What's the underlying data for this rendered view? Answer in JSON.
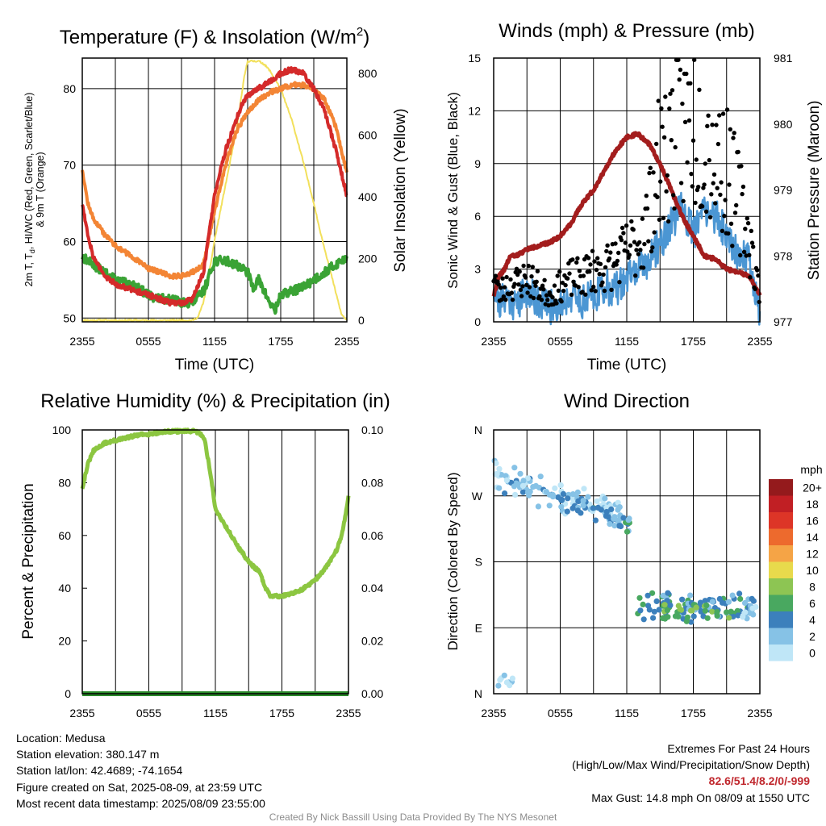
{
  "colors": {
    "temp": "#d42a2a",
    "dewpoint": "#3aa335",
    "temp9m": "#f38535",
    "insolation": "#f2e05c",
    "wind": "#4b96d3",
    "gust": "#000000",
    "pressure": "#a31d1d",
    "rh": "#8cc641",
    "precip": "#2b8a2b",
    "credit": "#8c8c8c",
    "extremes": "#c0272d"
  },
  "time_ticks": [
    "2355",
    "0555",
    "1155",
    "1755",
    "2355"
  ],
  "chart_data": [
    {
      "id": "temp",
      "type": "line",
      "title": "Temperature (F) & Insolation (W/m",
      "title_sup": "2",
      "title_close": ")",
      "xlabel": "Time (UTC)",
      "ylabel_left_lines": [
        "2m T, T",
        "d",
        ", HI/WC (Red, Green, Scarlet/Blue)",
        "& 9m T (Orange)"
      ],
      "ylabel_right": "Solar Insolation (Yellow)",
      "x_range": [
        0,
        24
      ],
      "ylim": [
        49.5,
        84
      ],
      "yticks": [
        50,
        60,
        70,
        80
      ],
      "y2lim": [
        -5,
        850
      ],
      "y2ticks": [
        0,
        200,
        400,
        600,
        800
      ],
      "series": [
        {
          "key": "temp",
          "axis": "left",
          "x": [
            0,
            0.5,
            1,
            2,
            3,
            4,
            5,
            6,
            7,
            8,
            9,
            10,
            11,
            12,
            13,
            14,
            14.5,
            15,
            16,
            17,
            18,
            19,
            20,
            21,
            22,
            23,
            23.5,
            24
          ],
          "values": [
            65,
            61,
            58,
            55.5,
            54.5,
            54,
            53.5,
            53,
            52.5,
            52,
            52,
            52.5,
            56,
            66,
            72,
            76,
            78,
            79,
            80,
            81,
            82,
            82.5,
            82,
            80,
            77,
            72,
            69,
            66
          ]
        },
        {
          "key": "temp9m",
          "axis": "left",
          "x": [
            0,
            0.5,
            1,
            2,
            3,
            4,
            5,
            6,
            7,
            8,
            9,
            10,
            11,
            12,
            13,
            14,
            15,
            16,
            17,
            18,
            19,
            20,
            21,
            22,
            23,
            23.5,
            24
          ],
          "values": [
            69.5,
            65,
            63,
            61,
            59.5,
            58.5,
            57.5,
            56.5,
            56,
            55.5,
            55.5,
            56,
            57,
            64,
            70,
            74.5,
            77,
            78.5,
            79.5,
            80,
            80.5,
            80.5,
            80,
            78.5,
            75,
            72,
            69
          ]
        },
        {
          "key": "dewpoint",
          "axis": "left",
          "x": [
            0,
            1,
            2,
            3,
            4,
            5,
            6,
            7,
            8,
            9,
            10,
            11,
            12,
            13,
            14,
            15,
            15.5,
            16,
            17,
            17.5,
            18,
            19,
            20,
            21,
            22,
            23,
            24
          ],
          "values": [
            58,
            57,
            56,
            55,
            54.5,
            54,
            53,
            52.5,
            52.5,
            52,
            52,
            53.5,
            57.5,
            57.5,
            57,
            56,
            54,
            55,
            52,
            51,
            53,
            53.5,
            54,
            55,
            56,
            57,
            58
          ]
        },
        {
          "key": "insolation",
          "axis": "right",
          "x": [
            0,
            8,
            10,
            10.5,
            11,
            11.5,
            12,
            13,
            14,
            14.7,
            15,
            16,
            16.5,
            17,
            18,
            19,
            20,
            21,
            21.5,
            22,
            23,
            23.5,
            24
          ],
          "values": [
            0,
            0,
            0,
            10,
            60,
            150,
            260,
            440,
            620,
            790,
            840,
            840,
            830,
            810,
            750,
            650,
            520,
            380,
            300,
            230,
            90,
            20,
            0
          ]
        }
      ]
    },
    {
      "id": "wind",
      "type": "scatter",
      "title": "Winds (mph) & Pressure (mb)",
      "xlabel": "Time (UTC)",
      "ylabel_left": "Sonic Wind & Gust (Blue, Black)",
      "ylabel_right": "Station Pressure (Maroon)",
      "x_range": [
        0,
        24
      ],
      "ylim": [
        0,
        15
      ],
      "yticks": [
        0,
        3,
        6,
        9,
        12,
        15
      ],
      "y2lim": [
        977,
        981
      ],
      "y2ticks": [
        977,
        978,
        979,
        980,
        981
      ],
      "series": [
        {
          "key": "pressure",
          "axis": "right",
          "x": [
            0,
            0.5,
            1,
            1.5,
            2,
            3,
            4,
            5,
            6,
            7,
            8,
            9,
            10,
            11,
            12,
            13,
            14,
            15,
            16,
            17,
            18,
            19,
            20,
            21,
            22,
            23,
            24
          ],
          "values": [
            977.4,
            977.7,
            977.8,
            978.0,
            978.0,
            978.1,
            978.15,
            978.2,
            978.3,
            978.5,
            978.8,
            979.0,
            979.3,
            979.6,
            979.8,
            979.85,
            979.7,
            979.4,
            979.0,
            978.6,
            978.3,
            978.0,
            977.95,
            977.8,
            977.75,
            977.7,
            977.4
          ]
        },
        {
          "key": "wind",
          "axis": "left",
          "x": [
            0,
            0.5,
            1,
            2,
            3,
            4,
            5,
            6,
            7,
            8,
            9,
            10,
            11,
            12,
            13,
            14,
            15,
            16,
            17,
            18,
            19,
            20,
            21,
            22,
            23,
            24
          ],
          "values": [
            2.0,
            1.0,
            1.5,
            1.0,
            1.8,
            1.2,
            0.8,
            1.0,
            1.5,
            1.2,
            1.5,
            2.0,
            1.8,
            2.5,
            3.0,
            3.5,
            4.5,
            5.5,
            6.5,
            5.0,
            6.5,
            6.0,
            5.0,
            4.0,
            3.5,
            0.5
          ]
        },
        {
          "key": "gust",
          "axis": "left",
          "x": [
            0,
            0.5,
            1,
            2,
            3,
            4,
            5,
            6,
            7,
            8,
            9,
            10,
            11,
            12,
            13,
            14,
            14.5,
            15,
            16,
            17,
            18,
            19,
            20,
            21,
            22,
            23,
            24
          ],
          "values": [
            3.0,
            1.5,
            2.0,
            2.2,
            2.5,
            2.0,
            1.5,
            2.0,
            2.5,
            2.5,
            3.0,
            3.0,
            3.5,
            4.0,
            4.5,
            6.0,
            8.0,
            9.0,
            10.5,
            11.0,
            11.5,
            10.5,
            9.5,
            8.5,
            7.0,
            5.0,
            1.5
          ]
        }
      ]
    },
    {
      "id": "rh",
      "type": "line",
      "title": "Relative Humidity (%) & Precipitation (in)",
      "ylabel_left": "Percent & Precipitation",
      "x_range": [
        0,
        24
      ],
      "ylim": [
        0,
        100
      ],
      "yticks": [
        0,
        20,
        40,
        60,
        80,
        100
      ],
      "y2lim": [
        0,
        0.1
      ],
      "y2ticks": [
        "0.00",
        "0.02",
        "0.04",
        "0.06",
        "0.08",
        "0.10"
      ],
      "series": [
        {
          "key": "rh",
          "axis": "left",
          "x": [
            0,
            0.5,
            1,
            2,
            3,
            4,
            5,
            6,
            7,
            8,
            9,
            10,
            10.5,
            11,
            11.5,
            12,
            13,
            14,
            15,
            16,
            16.5,
            17,
            18,
            19,
            20,
            21,
            22,
            23,
            23.5,
            24
          ],
          "values": [
            78,
            87,
            92,
            95,
            96,
            97,
            98,
            98.5,
            99,
            99.5,
            99.5,
            99.5,
            99,
            97,
            85,
            70,
            63,
            56,
            50,
            46,
            40,
            37,
            37,
            38,
            40,
            43,
            48,
            55,
            62,
            75
          ]
        },
        {
          "key": "precip",
          "axis": "right",
          "x": [
            0,
            24
          ],
          "values": [
            0,
            0
          ]
        }
      ]
    },
    {
      "id": "dir",
      "type": "scatter",
      "title": "Wind Direction",
      "ylabel_left": "Direction (Colored By Speed)",
      "x_range": [
        0,
        24
      ],
      "y_categories": [
        "N",
        "E",
        "S",
        "W",
        "N"
      ],
      "ylim": [
        0,
        360
      ],
      "legend_title": "mph",
      "legend_labels": [
        "0",
        "2",
        "4",
        "6",
        "8",
        "10",
        "12",
        "14",
        "16",
        "18",
        "20+"
      ],
      "legend_colors": [
        "#bfe6f7",
        "#86c2e6",
        "#3c80bc",
        "#49a860",
        "#8dc553",
        "#e8da4c",
        "#f5a446",
        "#ed6a2d",
        "#dd3527",
        "#c11f24",
        "#941a1c"
      ],
      "clusters": [
        {
          "x": [
            0,
            11.5
          ],
          "dir": [
            300,
            240
          ],
          "spread": 25,
          "count": 110,
          "speed": 1.5
        },
        {
          "x": [
            6,
            12.3
          ],
          "dir": [
            272,
            230
          ],
          "spread": 15,
          "count": 40,
          "speed": 3.5
        },
        {
          "x": [
            12.8,
            23.5
          ],
          "dir": [
            118,
            118
          ],
          "spread": 22,
          "count": 95,
          "speed": 4.0
        },
        {
          "x": [
            15,
            21.5
          ],
          "dir": [
            112,
            112
          ],
          "spread": 12,
          "count": 28,
          "speed": 7.0
        },
        {
          "x": [
            0.3,
            1.8
          ],
          "dir": [
            18,
            18
          ],
          "spread": 14,
          "count": 9,
          "speed": 1.0
        },
        {
          "x": [
            22.2,
            23.8
          ],
          "dir": [
            110,
            110
          ],
          "spread": 12,
          "count": 10,
          "speed": 1.2
        }
      ]
    }
  ],
  "footer": {
    "location": "Location: Medusa",
    "elevation": "Station elevation: 380.147 m",
    "latlon": "Station lat/lon: 42.4689; -74.1654",
    "created": "Figure created on Sat, 2025-08-09, at 23:59 UTC",
    "recent": "Most recent data timestamp: 2025/08/09 23:55:00",
    "extremes_title": "Extremes For Past 24 Hours",
    "extremes_legend": "(High/Low/Max Wind/Precipitation/Snow Depth)",
    "extremes_values": "82.6/51.4/8.2/0/-999",
    "max_gust": "Max Gust: 14.8 mph On 08/09 at 1550 UTC",
    "credit": "Created By Nick Bassill Using Data Provided By The NYS Mesonet"
  }
}
